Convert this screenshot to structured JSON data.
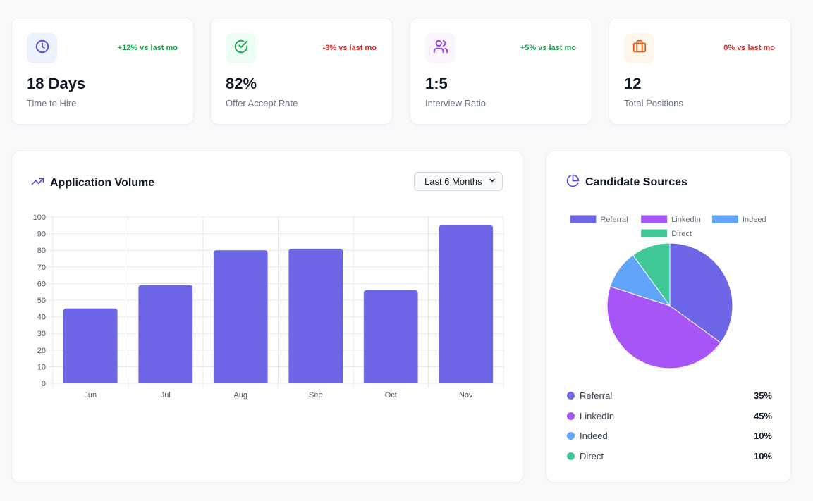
{
  "kpis": [
    {
      "icon": "clock-icon",
      "trend": "+12% vs last mo",
      "trend_dir": "up",
      "value": "18 Days",
      "label": "Time to Hire",
      "bg": "#eef2ff",
      "fg": "#4f46e5"
    },
    {
      "icon": "check-circle-icon",
      "trend": "-3% vs last mo",
      "trend_dir": "down",
      "value": "82%",
      "label": "Offer Accept Rate",
      "bg": "#ecfdf3",
      "fg": "#16a34a"
    },
    {
      "icon": "users-icon",
      "trend": "+5% vs last mo",
      "trend_dir": "up",
      "value": "1:5",
      "label": "Interview Ratio",
      "bg": "#faf5ff",
      "fg": "#9333ea"
    },
    {
      "icon": "briefcase-icon",
      "trend": "0% vs last mo",
      "trend_dir": "down",
      "value": "12",
      "label": "Total Positions",
      "bg": "#fff7ed",
      "fg": "#ea580c"
    }
  ],
  "volume": {
    "title": "Application Volume",
    "period_selected": "Last 6 Months"
  },
  "sources": {
    "title": "Candidate Sources"
  },
  "colors": {
    "bar": "#6d67e8",
    "referral": "#6d67e8",
    "linkedin": "#a855f7",
    "indeed": "#60a5fa",
    "direct": "#3fc896"
  },
  "chart_data": [
    {
      "type": "bar",
      "title": "Application Volume",
      "categories": [
        "Jun",
        "Jul",
        "Aug",
        "Sep",
        "Oct",
        "Nov"
      ],
      "values": [
        45,
        59,
        80,
        81,
        56,
        95
      ],
      "ylim": [
        0,
        100
      ],
      "yticks": [
        0,
        10,
        20,
        30,
        40,
        50,
        60,
        70,
        80,
        90,
        100
      ],
      "xlabel": "",
      "ylabel": "",
      "grid": true
    },
    {
      "type": "pie",
      "title": "Candidate Sources",
      "labels": [
        "Referral",
        "LinkedIn",
        "Indeed",
        "Direct"
      ],
      "values": [
        35,
        45,
        10,
        10
      ],
      "percent_labels": [
        "35%",
        "45%",
        "10%",
        "10%"
      ],
      "legend": "top"
    }
  ]
}
